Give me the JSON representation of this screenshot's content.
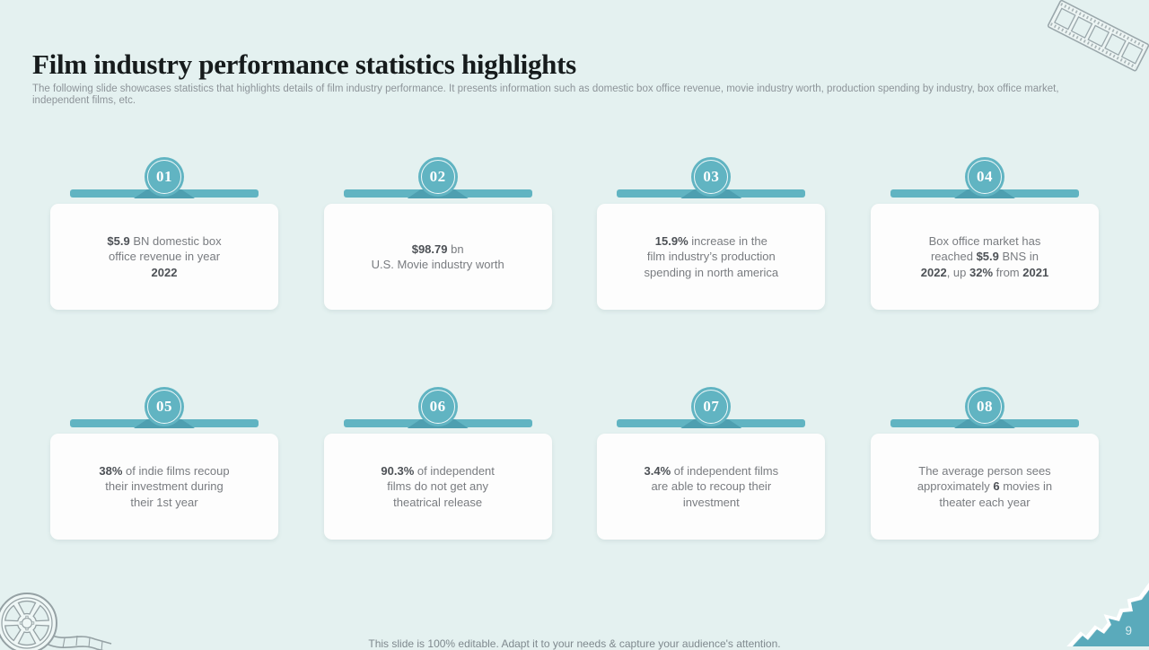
{
  "slide": {
    "title": "Film industry performance statistics highlights",
    "subtitle": "The following slide showcases statistics that highlights details of film industry performance. It presents information such as domestic box office revenue, movie industry worth, production spending by industry, box office market, independent films, etc.",
    "footer": "This slide is 100% editable. Adapt it to your needs & capture your audience's attention.",
    "page_number": "9"
  },
  "icons": {
    "top_right": "film-strip-icon",
    "bottom_left": "film-reel-icon"
  },
  "colors": {
    "background": "#e4f1f0",
    "accent_teal": "#61b4c2",
    "accent_teal_dark": "#4e9fb0",
    "corner_teal": "#5aaabb",
    "card_background": "#fdfdfd",
    "text_regular": "#797c80",
    "text_bold": "#4d5156",
    "title_color": "#161b1c",
    "subtitle_color": "#8d9499"
  },
  "cards": [
    {
      "number": "01",
      "segments": [
        {
          "t": "$5.9",
          "b": true
        },
        {
          "t": " BN domestic box\noffice revenue in year\n",
          "b": false
        },
        {
          "t": "2022",
          "b": true
        }
      ]
    },
    {
      "number": "02",
      "segments": [
        {
          "t": "$98.79",
          "b": true
        },
        {
          "t": " bn\nU.S. Movie industry worth",
          "b": false
        }
      ]
    },
    {
      "number": "03",
      "segments": [
        {
          "t": "15.9%",
          "b": true
        },
        {
          "t": " increase in the\nfilm industry’s production\nspending in north america",
          "b": false
        }
      ]
    },
    {
      "number": "04",
      "segments": [
        {
          "t": "Box office market has\nreached ",
          "b": false
        },
        {
          "t": "$5.9",
          "b": true
        },
        {
          "t": " BNS in\n",
          "b": false
        },
        {
          "t": "2022",
          "b": true
        },
        {
          "t": ", up ",
          "b": false
        },
        {
          "t": "32%",
          "b": true
        },
        {
          "t": " from ",
          "b": false
        },
        {
          "t": "2021",
          "b": true
        }
      ]
    },
    {
      "number": "05",
      "segments": [
        {
          "t": "38%",
          "b": true
        },
        {
          "t": " of indie films recoup\ntheir investment during\ntheir 1st year",
          "b": false
        }
      ]
    },
    {
      "number": "06",
      "segments": [
        {
          "t": "90.3%",
          "b": true
        },
        {
          "t": " of independent\nfilms do not get any\ntheatrical release",
          "b": false
        }
      ]
    },
    {
      "number": "07",
      "segments": [
        {
          "t": "3.4%",
          "b": true
        },
        {
          "t": " of independent films\nare able to recoup their\ninvestment",
          "b": false
        }
      ]
    },
    {
      "number": "08",
      "segments": [
        {
          "t": "The average person sees\napproximately ",
          "b": false
        },
        {
          "t": "6",
          "b": true
        },
        {
          "t": " movies in\ntheater each year",
          "b": false
        }
      ]
    }
  ]
}
